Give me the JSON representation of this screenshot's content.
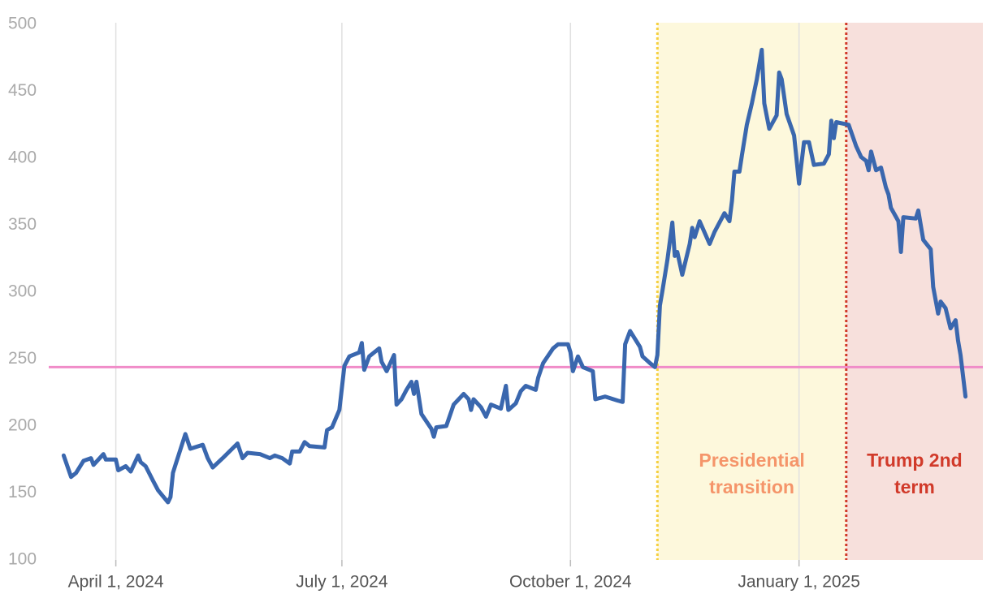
{
  "chart_data": {
    "type": "line",
    "color": "#3a67ae",
    "xlim": [
      "2024-03-05",
      "2025-03-16"
    ],
    "xticks": [
      {
        "value": "2024-04-01",
        "label": "April 1, 2024"
      },
      {
        "value": "2024-07-01",
        "label": "July 1, 2024"
      },
      {
        "value": "2024-10-01",
        "label": "October 1, 2024"
      },
      {
        "value": "2025-01-01",
        "label": "January 1, 2025"
      }
    ],
    "ylim": [
      100,
      500
    ],
    "yticks": [
      100,
      150,
      200,
      250,
      300,
      350,
      400,
      450,
      500
    ],
    "grid": "x",
    "reference_line": {
      "value": 244,
      "color": "#f08cc8"
    },
    "regions": [
      {
        "start": "2024-11-05",
        "end": "2025-01-20",
        "label": [
          "Presidential",
          "transition"
        ],
        "fill": "#fdf8dc",
        "line_color": "#f5d040",
        "text_color": "#f5956a"
      },
      {
        "start": "2025-01-20",
        "label": [
          "Trump 2nd",
          "term"
        ],
        "fill": "#f7e0dc",
        "line_color": "#d13a2a",
        "text_color": "#d13a2a"
      }
    ],
    "x": [
      "2024-03-11",
      "2024-03-14",
      "2024-03-16",
      "2024-03-19",
      "2024-03-22",
      "2024-03-23",
      "2024-03-27",
      "2024-03-28",
      "2024-04-01",
      "2024-04-02",
      "2024-04-05",
      "2024-04-07",
      "2024-04-10",
      "2024-04-11",
      "2024-04-13",
      "2024-04-16",
      "2024-04-18",
      "2024-04-22",
      "2024-04-23",
      "2024-04-24",
      "2024-04-25",
      "2024-04-29",
      "2024-05-01",
      "2024-05-06",
      "2024-05-08",
      "2024-05-10",
      "2024-05-14",
      "2024-05-20",
      "2024-05-22",
      "2024-05-24",
      "2024-05-29",
      "2024-06-02",
      "2024-06-04",
      "2024-06-07",
      "2024-06-10",
      "2024-06-11",
      "2024-06-14",
      "2024-06-16",
      "2024-06-18",
      "2024-06-24",
      "2024-06-25",
      "2024-06-27",
      "2024-06-30",
      "2024-07-02",
      "2024-07-04",
      "2024-07-08",
      "2024-07-09",
      "2024-07-10",
      "2024-07-12",
      "2024-07-16",
      "2024-07-17",
      "2024-07-19",
      "2024-07-22",
      "2024-07-23",
      "2024-07-25",
      "2024-07-27",
      "2024-07-29",
      "2024-07-30",
      "2024-07-31",
      "2024-08-02",
      "2024-08-06",
      "2024-08-07",
      "2024-08-08",
      "2024-08-12",
      "2024-08-15",
      "2024-08-17",
      "2024-08-19",
      "2024-08-21",
      "2024-08-22",
      "2024-08-23",
      "2024-08-26",
      "2024-08-28",
      "2024-08-30",
      "2024-09-03",
      "2024-09-05",
      "2024-09-06",
      "2024-09-09",
      "2024-09-11",
      "2024-09-13",
      "2024-09-17",
      "2024-09-18",
      "2024-09-20",
      "2024-09-24",
      "2024-09-26",
      "2024-09-30",
      "2024-10-01",
      "2024-10-02",
      "2024-10-04",
      "2024-10-06",
      "2024-10-10",
      "2024-10-11",
      "2024-10-15",
      "2024-10-20",
      "2024-10-22",
      "2024-10-23",
      "2024-10-25",
      "2024-10-29",
      "2024-10-30",
      "2024-11-02",
      "2024-11-04",
      "2024-11-05",
      "2024-11-06",
      "2024-11-07",
      "2024-11-09",
      "2024-11-11",
      "2024-11-12",
      "2024-11-13",
      "2024-11-15",
      "2024-11-18",
      "2024-11-19",
      "2024-11-20",
      "2024-11-22",
      "2024-11-26",
      "2024-11-28",
      "2024-12-02",
      "2024-12-04",
      "2024-12-05",
      "2024-12-06",
      "2024-12-08",
      "2024-12-09",
      "2024-12-11",
      "2024-12-13",
      "2024-12-15",
      "2024-12-17",
      "2024-12-18",
      "2024-12-20",
      "2024-12-23",
      "2024-12-24",
      "2024-12-25",
      "2024-12-27",
      "2024-12-30",
      "2025-01-01",
      "2025-01-03",
      "2025-01-05",
      "2025-01-07",
      "2025-01-11",
      "2025-01-13",
      "2025-01-14",
      "2025-01-15",
      "2025-01-16",
      "2025-01-21",
      "2025-01-24",
      "2025-01-26",
      "2025-01-28",
      "2025-01-29",
      "2025-01-30",
      "2025-02-01",
      "2025-02-03",
      "2025-02-05",
      "2025-02-06",
      "2025-02-07",
      "2025-02-10",
      "2025-02-11",
      "2025-02-12",
      "2025-02-17",
      "2025-02-18",
      "2025-02-20",
      "2025-02-23",
      "2025-02-24",
      "2025-02-26",
      "2025-02-27",
      "2025-03-01",
      "2025-03-03",
      "2025-03-05",
      "2025-03-06",
      "2025-03-07",
      "2025-03-09"
    ],
    "values": [
      178,
      162,
      165,
      174,
      176,
      171,
      179,
      175,
      175,
      167,
      170,
      166,
      178,
      173,
      170,
      159,
      152,
      143,
      147,
      165,
      171,
      194,
      183,
      186,
      176,
      169,
      176,
      187,
      176,
      180,
      179,
      176,
      178,
      176,
      172,
      181,
      181,
      188,
      185,
      184,
      197,
      199,
      212,
      245,
      252,
      255,
      262,
      242,
      252,
      258,
      248,
      241,
      253,
      216,
      220,
      227,
      233,
      224,
      233,
      209,
      198,
      192,
      199,
      200,
      216,
      220,
      224,
      220,
      212,
      220,
      214,
      207,
      216,
      213,
      230,
      212,
      217,
      226,
      230,
      227,
      236,
      247,
      258,
      261,
      261,
      255,
      241,
      252,
      244,
      241,
      220,
      222,
      219,
      218,
      261,
      271,
      259,
      252,
      247,
      244,
      253,
      290,
      301,
      324,
      352,
      327,
      330,
      313,
      336,
      348,
      341,
      353,
      336,
      345,
      359,
      353,
      368,
      390,
      390,
      402,
      425,
      441,
      459,
      481,
      441,
      422,
      432,
      464,
      459,
      433,
      417,
      381,
      412,
      412,
      395,
      396,
      403,
      428,
      415,
      427,
      425,
      409,
      401,
      398,
      391,
      405,
      391,
      393,
      378,
      373,
      363,
      353,
      330,
      356,
      355,
      361,
      339,
      332,
      304,
      284,
      293,
      288,
      273,
      279,
      264,
      253,
      222
    ]
  }
}
